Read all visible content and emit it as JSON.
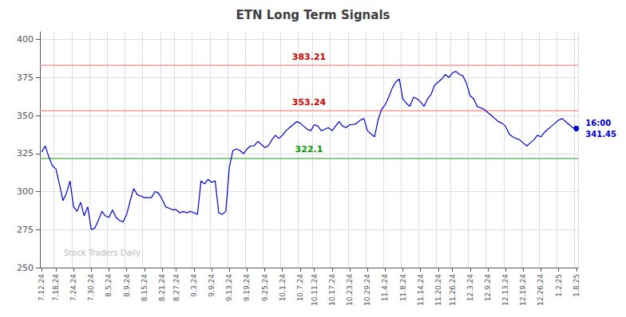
{
  "chart_data": {
    "type": "line",
    "title": "ETN Long Term Signals",
    "color": "#0000cc",
    "grid": true,
    "ylim": [
      250,
      405
    ],
    "yticks": [
      250,
      275,
      300,
      325,
      350,
      375,
      400
    ],
    "categories": [
      "7.12.24",
      null,
      null,
      null,
      "7.18.24",
      null,
      null,
      null,
      null,
      "7.24.24",
      null,
      null,
      null,
      null,
      "7.30.24",
      null,
      null,
      null,
      null,
      "8.5.24",
      null,
      null,
      null,
      null,
      "8.9.24",
      null,
      null,
      null,
      null,
      "8.15.24",
      null,
      null,
      null,
      null,
      "8.21.24",
      null,
      null,
      null,
      "8.27.24",
      null,
      null,
      null,
      null,
      "9.3.24",
      null,
      null,
      null,
      null,
      "9.9.24",
      null,
      null,
      null,
      null,
      "9.13.24",
      null,
      null,
      null,
      null,
      "9.19.24",
      null,
      null,
      null,
      null,
      "9.25.24",
      null,
      null,
      null,
      null,
      "10.1.24",
      null,
      null,
      null,
      null,
      "10.7.24",
      null,
      null,
      null,
      "10.11.24",
      null,
      null,
      null,
      null,
      "10.17.24",
      null,
      null,
      null,
      null,
      "10.23.24",
      null,
      null,
      null,
      null,
      "10.29.24",
      null,
      null,
      null,
      null,
      "11.4.24",
      null,
      null,
      null,
      null,
      "11.8.24",
      null,
      null,
      null,
      null,
      "11.14.24",
      null,
      null,
      null,
      null,
      "11.20.24",
      null,
      null,
      null,
      "11.26.24",
      null,
      null,
      null,
      null,
      "12.3.24",
      null,
      null,
      null,
      null,
      "12.9.24",
      null,
      null,
      null,
      null,
      "12.13.24",
      null,
      null,
      null,
      null,
      "12.19.24",
      null,
      null,
      null,
      null,
      "12.26.24",
      null,
      null,
      null,
      null,
      "1.2.25",
      null,
      null,
      null,
      null,
      "1.8.25"
    ],
    "values": [
      326.0,
      330.0,
      323.0,
      317.0,
      315.0,
      305.0,
      294.0,
      299.0,
      307.0,
      290.0,
      287.0,
      293.0,
      284.0,
      290.0,
      275.0,
      276.0,
      281.0,
      287.0,
      284.0,
      283.0,
      288.0,
      283.0,
      281.0,
      280.0,
      285.0,
      294.0,
      302.0,
      298.0,
      297.0,
      296.0,
      296.0,
      296.0,
      300.0,
      299.0,
      295.0,
      290.0,
      289.0,
      288.0,
      288.0,
      286.0,
      287.0,
      286.0,
      287.0,
      286.0,
      285.0,
      307.0,
      305.0,
      308.0,
      306.0,
      307.0,
      286.0,
      285.0,
      287.0,
      316.0,
      327.0,
      328.0,
      327.0,
      325.0,
      328.0,
      330.0,
      330.0,
      333.0,
      331.0,
      329.0,
      330.0,
      334.0,
      337.0,
      335.0,
      337.0,
      340.0,
      342.0,
      344.0,
      346.0,
      345.0,
      343.0,
      341.0,
      340.0,
      344.0,
      343.0,
      340.0,
      341.0,
      342.0,
      340.0,
      343.0,
      346.0,
      343.0,
      342.0,
      344.0,
      344.0,
      345.0,
      347.0,
      348.0,
      340.0,
      338.0,
      336.0,
      347.0,
      354.0,
      357.0,
      362.0,
      368.0,
      372.0,
      374.0,
      361.0,
      358.0,
      356.0,
      362.0,
      361.0,
      359.0,
      356.0,
      361.0,
      364.0,
      370.0,
      372.0,
      374.0,
      377.0,
      375.0,
      378.0,
      379.0,
      377.0,
      376.0,
      371.0,
      363.0,
      361.0,
      356.0,
      355.0,
      354.0,
      352.0,
      350.0,
      348.0,
      346.0,
      345.0,
      343.0,
      338.0,
      336.0,
      335.0,
      334.0,
      332.0,
      330.0,
      332.0,
      334.0,
      337.0,
      336.0,
      339.0,
      341.0,
      343.0,
      345.0,
      347.0,
      348.0,
      346.0,
      344.0,
      342.0,
      341.45
    ],
    "reference_lines": [
      {
        "value": 383.21,
        "label": "383.21",
        "color": "#ff9999",
        "label_color": "#cc0000"
      },
      {
        "value": 353.24,
        "label": "353.24",
        "color": "#ff9999",
        "label_color": "#cc0000"
      },
      {
        "value": 322.1,
        "label": "322.1",
        "color": "#66bb66",
        "label_color": "#009900"
      }
    ],
    "annotations": [
      {
        "text": "16:00",
        "color": "#0000cc"
      },
      {
        "text": "341.45",
        "color": "#0000cc"
      }
    ],
    "watermark": {
      "text": "Stock Traders Daily",
      "color": "#bbbbbb"
    }
  }
}
